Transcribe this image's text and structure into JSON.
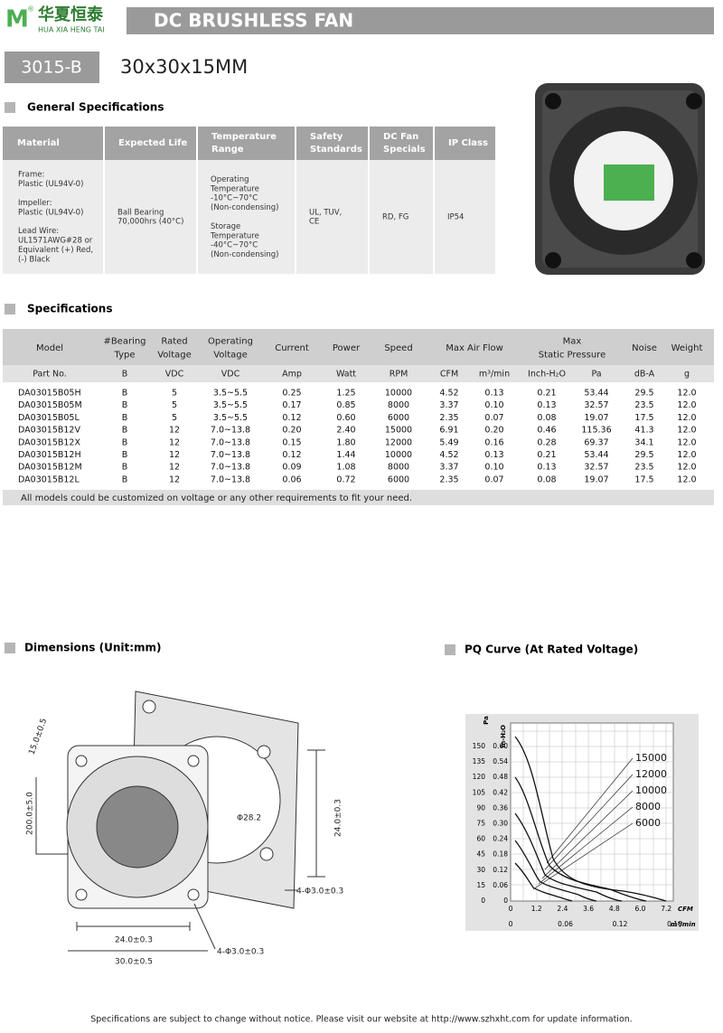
{
  "header": {
    "logo": "M",
    "reg": "®",
    "brand_cn": "华夏恒泰",
    "brand_en": "HUA XIA HENG TAI",
    "title": "DC BRUSHLESS FAN"
  },
  "model": {
    "code": "3015-B",
    "size": "30x30x15MM"
  },
  "general": {
    "title": "General Specifications",
    "headers": [
      [
        "Material"
      ],
      [
        "Expected Life"
      ],
      [
        "Temperature",
        "Range"
      ],
      [
        "Safety",
        "Standards"
      ],
      [
        "DC Fan",
        "Specials"
      ],
      [
        "IP Class"
      ]
    ],
    "cells": [
      [
        [
          "Frame:",
          "Plastic (UL94V-0)"
        ],
        [
          "Impeller:",
          "Plastic (UL94V-0)"
        ],
        [
          "Lead Wire:",
          "UL1571AWG#28 or",
          "Equivalent (+) Red,",
          "(-) Black"
        ]
      ],
      [
        [
          "Ball Bearing",
          "70,000hrs (40°C)"
        ]
      ],
      [
        [
          "Operating",
          "Temperature",
          "-10°C~70°C",
          "(Non-condensing)"
        ],
        [
          "Storage",
          "Temperature",
          "-40°C~70°C",
          "(Non-condensing)"
        ]
      ],
      [
        [
          "UL, TUV,",
          "CE"
        ]
      ],
      [
        [
          "RD, FG"
        ]
      ],
      [
        [
          "IP54"
        ]
      ]
    ]
  },
  "specs": {
    "title": "Specifications",
    "headers": [
      [
        "Model"
      ],
      [
        "#Bearing",
        "Type"
      ],
      [
        "Rated",
        "Voltage"
      ],
      [
        "Operating",
        "Voltage"
      ],
      [
        "Current"
      ],
      [
        "Power"
      ],
      [
        "Speed"
      ],
      [
        "Max  Air  Flow"
      ],
      [
        "Max",
        "Static  Pressure"
      ],
      [
        "Noise"
      ],
      [
        "Weight"
      ]
    ],
    "units": [
      "Part No.",
      "B",
      "VDC",
      "VDC",
      "Amp",
      "Watt",
      "RPM",
      "CFM",
      "m³/min",
      "Inch-H₂O",
      "Pa",
      "dB-A",
      "g"
    ],
    "rows": [
      [
        "DA03015B05H",
        "B",
        "5",
        "3.5~5.5",
        "0.25",
        "1.25",
        "10000",
        "4.52",
        "0.13",
        "0.21",
        "53.44",
        "29.5",
        "12.0"
      ],
      [
        "DA03015B05M",
        "B",
        "5",
        "3.5~5.5",
        "0.17",
        "0.85",
        "8000",
        "3.37",
        "0.10",
        "0.13",
        "32.57",
        "23.5",
        "12.0"
      ],
      [
        "DA03015B05L",
        "B",
        "5",
        "3.5~5.5",
        "0.12",
        "0.60",
        "6000",
        "2.35",
        "0.07",
        "0.08",
        "19.07",
        "17.5",
        "12.0"
      ],
      [
        "DA03015B12V",
        "B",
        "12",
        "7.0~13.8",
        "0.20",
        "2.40",
        "15000",
        "6.91",
        "0.20",
        "0.46",
        "115.36",
        "41.3",
        "12.0"
      ],
      [
        "DA03015B12X",
        "B",
        "12",
        "7.0~13.8",
        "0.15",
        "1.80",
        "12000",
        "5.49",
        "0.16",
        "0.28",
        "69.37",
        "34.1",
        "12.0"
      ],
      [
        "DA03015B12H",
        "B",
        "12",
        "7.0~13.8",
        "0.12",
        "1.44",
        "10000",
        "4.52",
        "0.13",
        "0.21",
        "53.44",
        "29.5",
        "12.0"
      ],
      [
        "DA03015B12M",
        "B",
        "12",
        "7.0~13.8",
        "0.09",
        "1.08",
        "8000",
        "3.37",
        "0.10",
        "0.13",
        "32.57",
        "23.5",
        "12.0"
      ],
      [
        "DA03015B12L",
        "B",
        "12",
        "7.0~13.8",
        "0.06",
        "0.72",
        "6000",
        "2.35",
        "0.07",
        "0.08",
        "19.07",
        "17.5",
        "12.0"
      ]
    ],
    "note": "All models could be customized on voltage or any other requirements to fit your need."
  },
  "dimensions": {
    "title": "Dimensions (Unit:mm)",
    "labels": [
      "15.0±0.5",
      "200.0±5.0",
      "Φ28.2",
      "24.0±0.3",
      "4-Φ3.0±0.3",
      "24.0±0.3",
      "30.0±0.5",
      "4-Φ3.0±0.3"
    ]
  },
  "pq": {
    "title": "PQ Curve (At Rated Voltage)",
    "y_label": "Pa",
    "y2_label": "In-H₂O",
    "pa_ticks": [
      "150",
      "135",
      "120",
      "105",
      "90",
      "75",
      "60",
      "45",
      "30",
      "15",
      "0"
    ],
    "inh2o_ticks": [
      "0.60",
      "0.54",
      "0.48",
      "0.42",
      "0.36",
      "0.30",
      "0.24",
      "0.18",
      "0.12",
      "0.06",
      "0"
    ],
    "cfm_ticks": [
      "0",
      "1.2",
      "2.4",
      "3.6",
      "4.8",
      "6.0",
      "7.2"
    ],
    "x_label": "CFM",
    "m3_ticks": [
      "0",
      "0.06",
      "0.12",
      "0.18"
    ],
    "x2_label": "m³/min",
    "legend": [
      "15000",
      "12000",
      "10000",
      "8000",
      "6000"
    ]
  },
  "footer": "Specifications are subject to change without notice. Please visit our website at http://www.szhxht.com for update information."
}
